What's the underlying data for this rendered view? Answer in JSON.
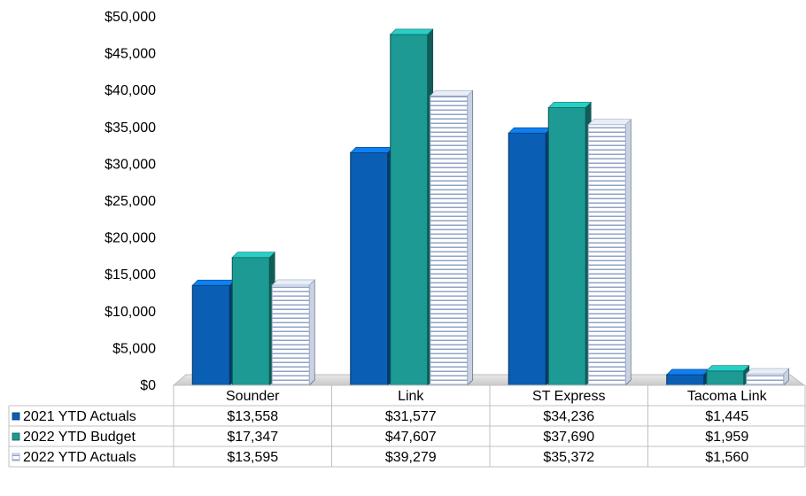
{
  "chart_data": {
    "type": "bar",
    "categories": [
      "Sounder",
      "Link",
      "ST Express",
      "Tacoma Link"
    ],
    "series": [
      {
        "name": "2021 YTD Actuals",
        "values": [
          13558,
          31577,
          34236,
          1445
        ],
        "labels": [
          "$13,558",
          "$31,577",
          "$34,236",
          "$1,445"
        ],
        "color": "#0a5fb4"
      },
      {
        "name": "2022 YTD Budget",
        "values": [
          17347,
          47607,
          37690,
          1959
        ],
        "labels": [
          "$17,347",
          "$47,607",
          "$37,690",
          "$1,959"
        ],
        "color": "#1c9a93"
      },
      {
        "name": "2022 YTD Actuals",
        "values": [
          13595,
          39279,
          35372,
          1560
        ],
        "labels": [
          "$13,595",
          "$39,279",
          "$35,372",
          "$1,560"
        ],
        "color": "#ffffff",
        "pattern": "horizontal-lines",
        "pattern_color": "#8fa3c6"
      }
    ],
    "ylim": [
      0,
      50000
    ],
    "y_ticks": [
      0,
      5000,
      10000,
      15000,
      20000,
      25000,
      30000,
      35000,
      40000,
      45000,
      50000
    ],
    "y_tick_labels": [
      "$0",
      "$5,000",
      "$10,000",
      "$15,000",
      "$20,000",
      "$25,000",
      "$30,000",
      "$35,000",
      "$40,000",
      "$45,000",
      "$50,000"
    ],
    "grid": false,
    "legend": "data-table-rows",
    "title": "",
    "xlabel": "",
    "ylabel": ""
  }
}
